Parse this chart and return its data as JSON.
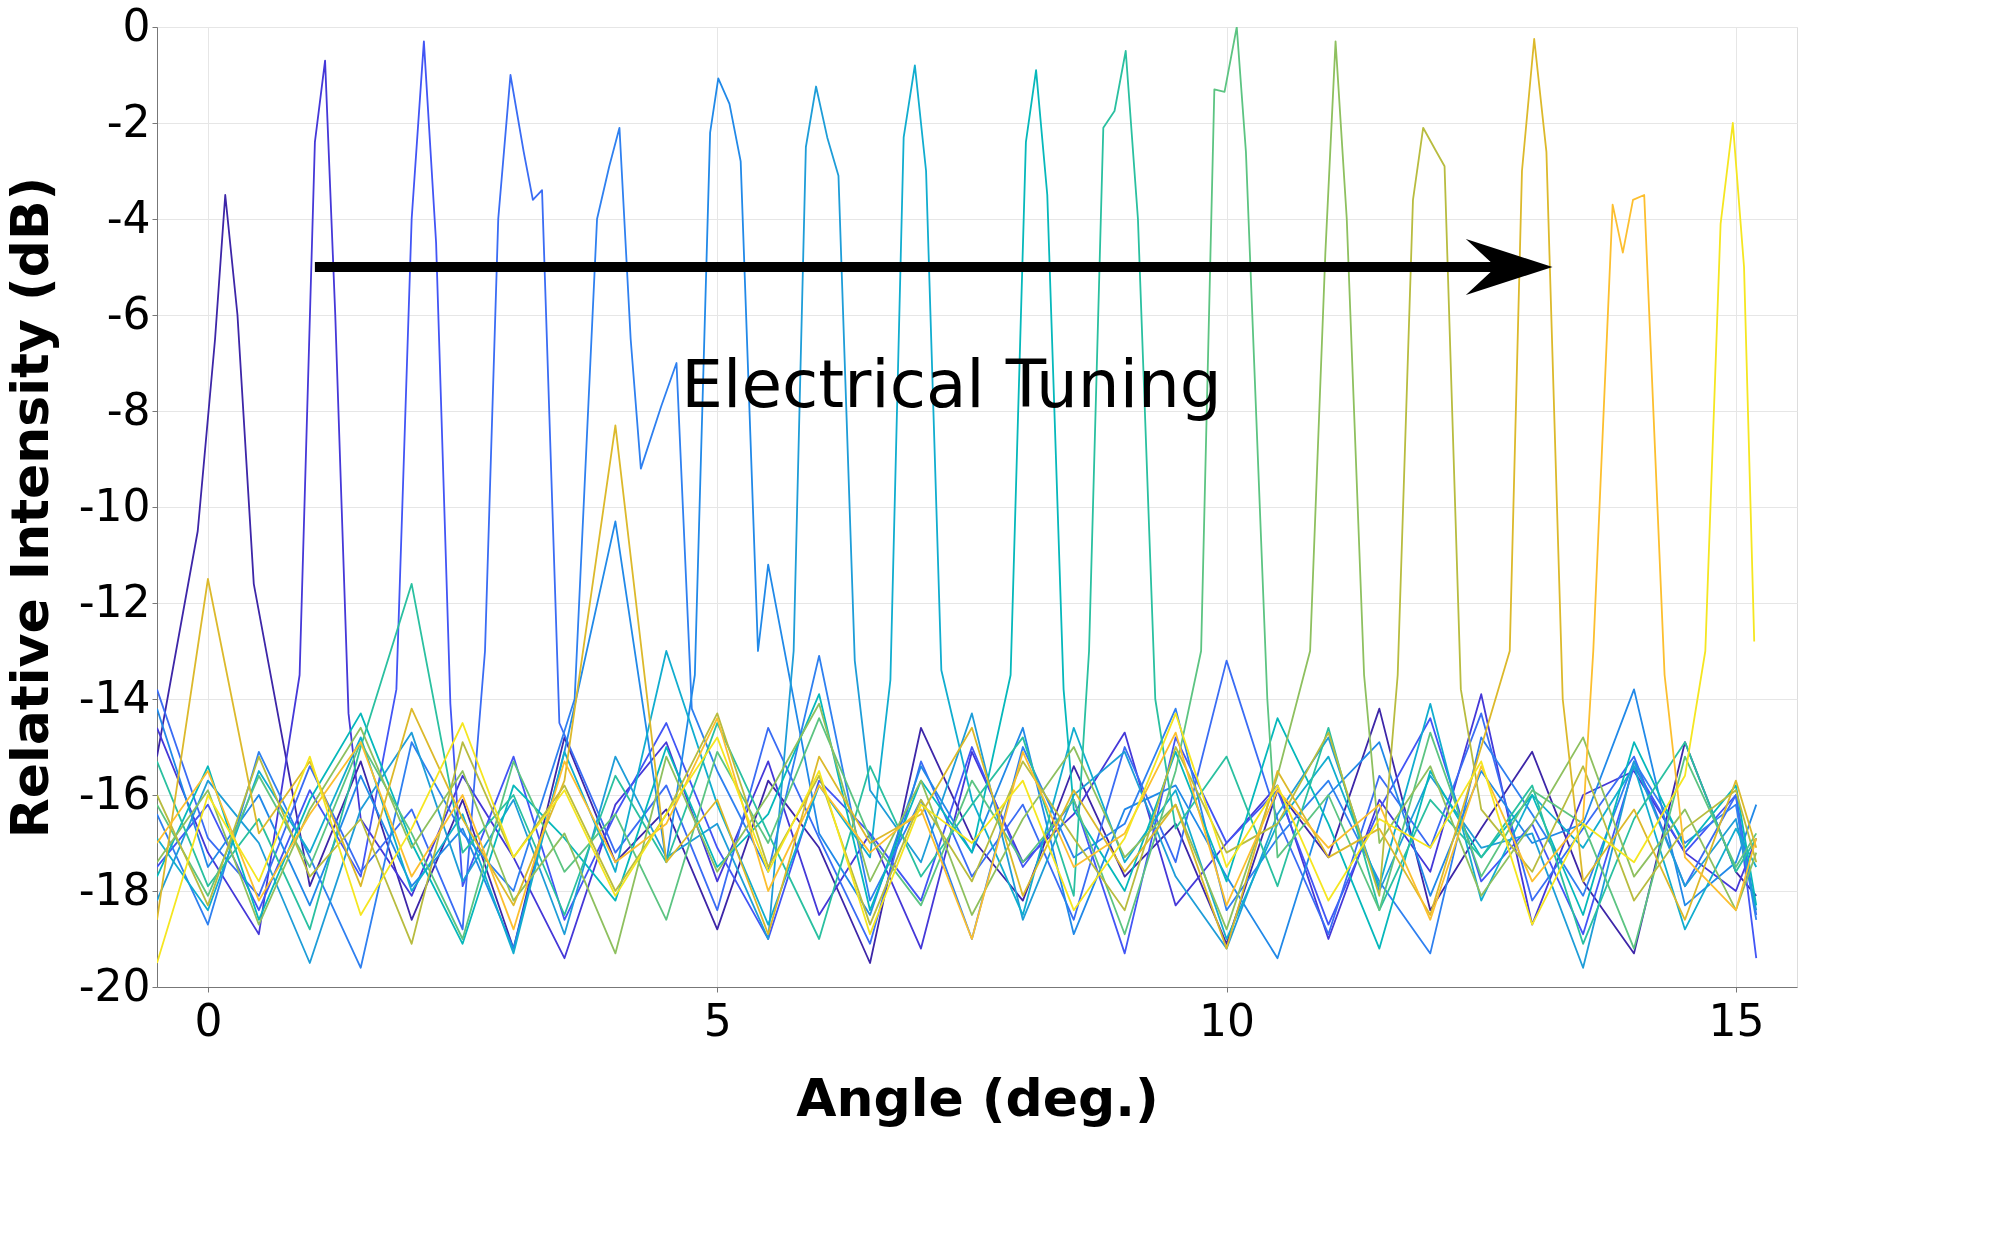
{
  "chart_data": {
    "type": "line",
    "xlabel": "Angle (deg.)",
    "ylabel": "Relative Intensity (dB)",
    "xlim": [
      -0.5,
      15.6
    ],
    "ylim": [
      -20,
      0
    ],
    "xticks": [
      0,
      5,
      10,
      15
    ],
    "yticks": [
      -20,
      -18,
      -16,
      -14,
      -12,
      -10,
      -8,
      -6,
      -4,
      -2,
      0
    ],
    "grid": true,
    "annotations": [
      "Electrical Tuning"
    ],
    "series": [
      {
        "color": "#3d26a8",
        "x": [
          -0.5,
          -0.1,
          0.07,
          0.17,
          0.29,
          0.45,
          1,
          1.5,
          2,
          2.5,
          3,
          3.5,
          4,
          4.5,
          5,
          5.5,
          6,
          6.5,
          7,
          7.5,
          8,
          8.5,
          9,
          9.5,
          10,
          10.5,
          11,
          11.5,
          12,
          12.5,
          13,
          13.5,
          14,
          14.5,
          15,
          15.2
        ],
        "values": [
          -15.2,
          -10.5,
          -6.5,
          -3.5,
          -6,
          -11.6,
          -17.9,
          -15.3,
          -18.6,
          -16.1,
          -19.2,
          -14.8,
          -17.4,
          -16.3,
          -18.8,
          -15.7,
          -17.1,
          -19.5,
          -14.6,
          -16.9,
          -18.2,
          -15.4,
          -17.7,
          -16.6,
          -19.1,
          -15.9,
          -17.3,
          -14.2,
          -18.4,
          -16.7,
          -15.1,
          -17.8,
          -19.3,
          -14.9,
          -17.6,
          -18.1
        ]
      },
      {
        "color": "#4538d8",
        "x": [
          -0.5,
          0,
          0.5,
          0.9,
          1.05,
          1.15,
          1.25,
          1.38,
          1.5,
          2,
          2.5,
          3,
          3.5,
          4,
          4.5,
          5,
          5.5,
          6,
          6.5,
          7,
          7.5,
          8,
          8.5,
          9,
          9.5,
          10,
          10.5,
          11,
          11.5,
          12,
          12.5,
          13,
          13.5,
          14,
          14.5,
          15,
          15.2
        ],
        "values": [
          -14.6,
          -17.2,
          -18.9,
          -13.5,
          -2.4,
          -0.7,
          -6,
          -14.3,
          -16.5,
          -18.1,
          -15.6,
          -17.3,
          -19.4,
          -16.2,
          -14.9,
          -17.8,
          -15.3,
          -18.5,
          -16.8,
          -19.2,
          -15.1,
          -17.4,
          -16.4,
          -14.7,
          -18.3,
          -17.0,
          -15.8,
          -19.0,
          -16.1,
          -17.6,
          -13.9,
          -18.7,
          -16.0,
          -15.5,
          -17.2,
          -18.0,
          -16.9
        ]
      },
      {
        "color": "#4255f5",
        "x": [
          -0.5,
          0,
          0.5,
          1,
          1.5,
          1.85,
          2.0,
          2.12,
          2.24,
          2.38,
          2.5,
          3,
          3.5,
          4,
          4.5,
          5,
          5.5,
          6,
          6.5,
          7,
          7.5,
          8,
          8.5,
          9,
          9.5,
          10,
          10.5,
          11,
          11.5,
          12,
          12.5,
          13,
          13.5,
          14,
          14.5,
          15,
          15.2
        ],
        "values": [
          -17.5,
          -16.2,
          -18.4,
          -15.9,
          -17.7,
          -13.8,
          -4,
          -0.3,
          -4.5,
          -14.1,
          -17.9,
          -15.2,
          -18.6,
          -16.4,
          -14.5,
          -17.1,
          -19.0,
          -15.7,
          -16.8,
          -18.2,
          -15.0,
          -17.5,
          -16.1,
          -19.3,
          -14.8,
          -17.0,
          -15.9,
          -18.7,
          -16.3,
          -14.4,
          -17.8,
          -16.6,
          -18.9,
          -15.4,
          -17.2,
          -16.0,
          -19.4
        ]
      },
      {
        "color": "#3a6cf4",
        "x": [
          -0.5,
          0,
          0.5,
          1,
          1.5,
          2,
          2.5,
          2.72,
          2.85,
          2.97,
          3.1,
          3.19,
          3.28,
          3.45,
          4,
          4.5,
          5,
          5.5,
          6,
          6.5,
          7,
          7.5,
          8,
          8.5,
          9,
          9.5,
          10,
          10.5,
          11,
          11.5,
          12,
          12.5,
          13,
          13.5,
          14,
          14.5,
          15,
          15.2
        ],
        "values": [
          -13.8,
          -16.9,
          -18.1,
          -15.4,
          -17.6,
          -16.3,
          -18.8,
          -13,
          -4,
          -1.0,
          -2.6,
          -3.6,
          -3.4,
          -14.5,
          -17.2,
          -15.8,
          -18.4,
          -14.6,
          -16.9,
          -19.1,
          -15.3,
          -17.7,
          -16.2,
          -18.6,
          -15.0,
          -17.4,
          -13.2,
          -16.5,
          -18.9,
          -15.6,
          -17.1,
          -14.3,
          -18.2,
          -16.7,
          -15.2,
          -17.9,
          -16.0,
          -18.5
        ]
      },
      {
        "color": "#2f80f0",
        "x": [
          -0.5,
          0,
          0.5,
          1,
          1.5,
          2,
          2.5,
          3,
          3.6,
          3.82,
          3.94,
          4.04,
          4.15,
          4.25,
          4.45,
          4.6,
          4.75,
          5,
          5.5,
          6,
          6.5,
          7,
          7.5,
          8,
          8.5,
          9,
          9.5,
          10,
          10.5,
          11,
          11.5,
          12,
          12.5,
          13,
          13.5,
          14,
          14.5,
          15,
          15.2
        ],
        "values": [
          -16.4,
          -18.7,
          -15.1,
          -17.3,
          -19.6,
          -14.9,
          -16.8,
          -18.0,
          -14,
          -4,
          -2.9,
          -2.1,
          -6.5,
          -9.2,
          -7.9,
          -7,
          -14.2,
          -15.5,
          -17.6,
          -13.1,
          -18.2,
          -16.1,
          -19.0,
          -15.0,
          -17.3,
          -16.6,
          -14.2,
          -18.4,
          -16.9,
          -15.7,
          -17.8,
          -19.3,
          -14.8,
          -16.4,
          -18.1,
          -15.3,
          -17.0,
          -16.2,
          -18.6
        ]
      },
      {
        "color": "#2189e8",
        "x": [
          -0.5,
          0,
          0.5,
          1,
          1.5,
          2,
          2.5,
          3,
          3.5,
          4,
          4.5,
          4.78,
          4.93,
          5.01,
          5.12,
          5.23,
          5.4,
          5.5,
          6,
          6.5,
          7,
          7.5,
          8,
          8.5,
          9,
          9.5,
          10,
          10.5,
          11,
          11.5,
          12,
          12.5,
          13,
          13.5,
          14,
          14.5,
          15,
          15.2
        ],
        "values": [
          -14.2,
          -17.5,
          -16.0,
          -18.3,
          -15.6,
          -17.9,
          -16.7,
          -19.2,
          -15.1,
          -10.3,
          -17.4,
          -13.5,
          -2.2,
          -1.07,
          -1.6,
          -2.8,
          -13,
          -11.2,
          -16.8,
          -18.5,
          -15.4,
          -17.2,
          -14.6,
          -18.9,
          -16.3,
          -15.8,
          -17.7,
          -19.4,
          -16.0,
          -14.9,
          -18.1,
          -15.5,
          -17.0,
          -16.6,
          -13.8,
          -18.3,
          -17.4,
          -16.2
        ]
      },
      {
        "color": "#1e9dd8",
        "x": [
          -0.5,
          0,
          0.5,
          1,
          1.5,
          2,
          2.5,
          3,
          3.5,
          4,
          4.5,
          5,
          5.5,
          5.75,
          5.87,
          5.97,
          6.08,
          6.19,
          6.35,
          6.5,
          7,
          7.5,
          8,
          8.5,
          9,
          9.5,
          10,
          10.5,
          11,
          11.5,
          12,
          12.5,
          13,
          13.5,
          14,
          14.5,
          15,
          15.2
        ],
        "values": [
          -18.2,
          -15.7,
          -17.0,
          -19.5,
          -16.3,
          -14.7,
          -17.8,
          -16.1,
          -18.9,
          -15.2,
          -17.3,
          -16.6,
          -19.0,
          -13,
          -2.5,
          -1.24,
          -2.3,
          -3.1,
          -13.2,
          -15.9,
          -17.4,
          -14.3,
          -18.6,
          -16.0,
          -15.1,
          -17.7,
          -19.2,
          -16.4,
          -14.8,
          -18.0,
          -15.6,
          -17.1,
          -16.8,
          -19.6,
          -15.3,
          -17.9,
          -16.5,
          -18.4
        ]
      },
      {
        "color": "#11adcf",
        "x": [
          -0.5,
          0,
          0.5,
          1,
          1.5,
          2,
          2.5,
          3,
          3.5,
          4,
          4.5,
          5,
          5.5,
          6,
          6.5,
          6.7,
          6.83,
          6.94,
          7.05,
          7.2,
          7.5,
          8,
          8.5,
          9,
          9.5,
          10,
          10.5,
          11,
          11.5,
          12,
          12.5,
          13,
          13.5,
          14,
          14.5,
          15,
          15.2
        ],
        "values": [
          -16.9,
          -18.4,
          -15.5,
          -17.2,
          -14.8,
          -18.0,
          -16.4,
          -19.3,
          -15.1,
          -17.6,
          -13.0,
          -16.2,
          -18.7,
          -15.8,
          -17.3,
          -13.6,
          -2.3,
          -0.8,
          -3,
          -13.4,
          -16.1,
          -18.5,
          -14.6,
          -17.4,
          -15.9,
          -19.0,
          -16.6,
          -15.2,
          -17.9,
          -14.1,
          -18.2,
          -16.0,
          -17.1,
          -15.4,
          -18.8,
          -16.7,
          -17.5
        ]
      },
      {
        "color": "#06b8bb",
        "x": [
          -0.5,
          0,
          0.5,
          1,
          1.5,
          2,
          2.5,
          3,
          3.5,
          4,
          4.5,
          5,
          5.5,
          6,
          6.5,
          7,
          7.5,
          7.88,
          8.03,
          8.13,
          8.24,
          8.4,
          8.5,
          9,
          9.5,
          10,
          10.5,
          11,
          11.5,
          12,
          12.5,
          13,
          13.5,
          14,
          14.5,
          15,
          15.2
        ],
        "values": [
          -17.7,
          -15.4,
          -18.6,
          -16.1,
          -14.3,
          -17.0,
          -19.1,
          -15.8,
          -16.9,
          -18.2,
          -15.0,
          -17.5,
          -16.4,
          -13.9,
          -18.4,
          -15.7,
          -17.2,
          -13.5,
          -2.4,
          -0.9,
          -3.5,
          -13.8,
          -16.3,
          -18.0,
          -15.1,
          -17.8,
          -14.4,
          -16.6,
          -19.2,
          -15.5,
          -17.3,
          -16.0,
          -18.5,
          -14.9,
          -17.1,
          -15.8,
          -18.3
        ]
      },
      {
        "color": "#2ac0a0",
        "x": [
          -0.5,
          0,
          0.5,
          1,
          1.5,
          2,
          2.5,
          3,
          3.5,
          4,
          4.5,
          5,
          5.5,
          6,
          6.5,
          7,
          7.5,
          8,
          8.5,
          8.65,
          8.79,
          8.9,
          9.01,
          9.13,
          9.3,
          9.5,
          10,
          10.5,
          11,
          11.5,
          12,
          12.5,
          13,
          13.5,
          14,
          14.5,
          15,
          15.2
        ],
        "values": [
          -15.3,
          -17.9,
          -16.5,
          -18.8,
          -15.0,
          -11.6,
          -17.2,
          -16.0,
          -18.5,
          -15.6,
          -17.4,
          -14.5,
          -16.8,
          -19.0,
          -15.4,
          -17.7,
          -16.2,
          -14.8,
          -18.1,
          -13,
          -2.1,
          -1.75,
          -0.5,
          -4,
          -14,
          -16.7,
          -15.2,
          -17.9,
          -14.6,
          -18.4,
          -16.1,
          -17.3,
          -15.8,
          -19.1,
          -16.5,
          -14.9,
          -17.6,
          -16.9
        ]
      },
      {
        "color": "#5cc482",
        "x": [
          -0.5,
          0,
          0.5,
          1,
          1.5,
          2,
          2.5,
          3,
          3.5,
          4,
          4.5,
          5,
          5.5,
          6,
          6.5,
          7,
          7.5,
          8,
          8.5,
          9,
          9.5,
          9.75,
          9.88,
          9.98,
          10.1,
          10.19,
          10.4,
          10.5,
          11,
          11.5,
          12,
          12.5,
          13,
          13.5,
          14,
          14.5,
          15,
          15.2
        ],
        "values": [
          -16.2,
          -18.1,
          -15.6,
          -17.5,
          -14.9,
          -16.8,
          -19.0,
          -15.3,
          -17.6,
          -16.4,
          -18.6,
          -15.1,
          -17.0,
          -14.4,
          -16.9,
          -18.3,
          -15.7,
          -17.4,
          -16.1,
          -18.9,
          -15.5,
          -13,
          -1.3,
          -1.35,
          0,
          -2.6,
          -14,
          -17.3,
          -16.0,
          -18.4,
          -14.7,
          -17.7,
          -15.9,
          -16.6,
          -19.2,
          -15.2,
          -17.5,
          -16.8
        ]
      },
      {
        "color": "#8ec05f",
        "x": [
          -0.5,
          0,
          0.5,
          1,
          1.5,
          2,
          2.5,
          3,
          3.5,
          4,
          4.5,
          5,
          5.5,
          6,
          6.5,
          7,
          7.5,
          8,
          8.5,
          9,
          9.5,
          10,
          10.5,
          10.82,
          10.97,
          11.07,
          11.18,
          11.35,
          11.5,
          12,
          12.5,
          13,
          13.5,
          14,
          14.5,
          15,
          15.2
        ],
        "values": [
          -17.4,
          -15.9,
          -18.7,
          -16.3,
          -14.6,
          -17.1,
          -15.5,
          -18.2,
          -16.8,
          -19.3,
          -15.2,
          -17.6,
          -16.0,
          -14.1,
          -17.8,
          -15.7,
          -18.5,
          -16.5,
          -15.0,
          -17.3,
          -16.2,
          -18.8,
          -15.6,
          -13,
          -4.7,
          -0.3,
          -4,
          -13.5,
          -17.0,
          -15.4,
          -18.1,
          -16.6,
          -14.8,
          -17.7,
          -16.3,
          -18.4,
          -17.2
        ]
      },
      {
        "color": "#b8bc3f",
        "x": [
          -0.5,
          0,
          0.5,
          1,
          1.5,
          2,
          2.5,
          3,
          3.5,
          4,
          4.5,
          5,
          5.5,
          6,
          6.5,
          7,
          7.5,
          8,
          8.5,
          9,
          9.5,
          10,
          10.5,
          11,
          11.5,
          11.68,
          11.83,
          11.93,
          12.06,
          12.14,
          12.3,
          12.5,
          13,
          13.5,
          14,
          14.5,
          15,
          15.2
        ],
        "values": [
          -16.0,
          -18.3,
          -15.2,
          -17.7,
          -16.5,
          -19.1,
          -14.9,
          -17.3,
          -15.8,
          -18.0,
          -16.4,
          -14.3,
          -17.5,
          -15.6,
          -18.7,
          -16.1,
          -17.8,
          -15.3,
          -16.9,
          -18.4,
          -15.0,
          -17.2,
          -16.6,
          -14.7,
          -18.1,
          -13.5,
          -3.6,
          -2.1,
          -2.6,
          -2.9,
          -13.8,
          -16.3,
          -17.6,
          -15.4,
          -18.2,
          -16.7,
          -15.9,
          -17.4
        ]
      },
      {
        "color": "#dcb92b",
        "x": [
          -0.5,
          0,
          0.5,
          1,
          1.5,
          2,
          2.5,
          3,
          3.5,
          4,
          4.5,
          5,
          5.5,
          6,
          6.5,
          7,
          7.5,
          8,
          8.5,
          9,
          9.5,
          10,
          10.5,
          11,
          11.5,
          12,
          12.5,
          12.78,
          12.9,
          13.02,
          13.14,
          13.3,
          13.5,
          14,
          14.5,
          15,
          15.2
        ],
        "values": [
          -18.6,
          -11.5,
          -16.8,
          -15.3,
          -17.9,
          -14.2,
          -16.5,
          -18.3,
          -15.7,
          -8.3,
          -17.4,
          -16.1,
          -18.9,
          -15.2,
          -17.0,
          -16.4,
          -14.6,
          -18.1,
          -15.9,
          -17.6,
          -16.2,
          -19.2,
          -15.5,
          -17.3,
          -16.7,
          -18.5,
          -15.0,
          -13,
          -3,
          -0.25,
          -2.6,
          -14,
          -17.8,
          -16.3,
          -18.6,
          -15.7,
          -17.1
        ]
      },
      {
        "color": "#fcbf2f",
        "x": [
          -0.5,
          0,
          0.5,
          1,
          1.5,
          2,
          2.5,
          3,
          3.5,
          4,
          4.5,
          5,
          5.5,
          6,
          6.5,
          7,
          7.5,
          8,
          8.5,
          9,
          9.5,
          10,
          10.5,
          11,
          11.5,
          12,
          12.5,
          13,
          13.5,
          13.6,
          13.79,
          13.89,
          13.99,
          14.1,
          14.3,
          14.5,
          15,
          15.2
        ],
        "values": [
          -17.0,
          -15.5,
          -18.2,
          -16.4,
          -14.9,
          -17.7,
          -16.0,
          -18.8,
          -15.3,
          -17.4,
          -16.6,
          -14.4,
          -18.0,
          -15.8,
          -17.2,
          -16.3,
          -19.0,
          -15.1,
          -17.5,
          -16.8,
          -14.7,
          -18.3,
          -15.9,
          -17.1,
          -16.2,
          -18.6,
          -15.4,
          -17.8,
          -16.5,
          -13,
          -3.7,
          -4.7,
          -3.6,
          -3.5,
          -13.5,
          -17.3,
          -18.4,
          -16.9
        ]
      },
      {
        "color": "#f5e620",
        "x": [
          -0.5,
          0,
          0.5,
          1,
          1.5,
          2,
          2.5,
          3,
          3.5,
          4,
          4.5,
          5,
          5.5,
          6,
          6.5,
          7,
          7.5,
          8,
          8.5,
          9,
          9.5,
          10,
          10.5,
          11,
          11.5,
          12,
          12.5,
          13,
          13.5,
          14,
          14.5,
          14.7,
          14.85,
          14.97,
          15.08,
          15.18
        ],
        "values": [
          -19.5,
          -16.0,
          -17.8,
          -15.2,
          -18.5,
          -16.7,
          -14.5,
          -17.3,
          -15.9,
          -18.1,
          -16.4,
          -14.8,
          -17.6,
          -15.5,
          -18.9,
          -16.2,
          -17.0,
          -15.7,
          -18.4,
          -16.9,
          -14.3,
          -17.5,
          -15.8,
          -18.2,
          -16.5,
          -17.1,
          -15.3,
          -18.7,
          -16.6,
          -17.4,
          -15.6,
          -13,
          -4.1,
          -2.0,
          -5,
          -12.8
        ]
      }
    ]
  }
}
